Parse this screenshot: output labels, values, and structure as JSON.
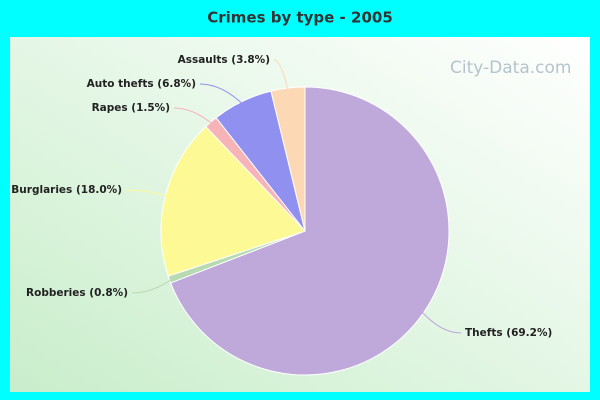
{
  "chart_data": {
    "type": "pie",
    "title": "Crimes by type - 2005",
    "categories": [
      "Thefts",
      "Robberies",
      "Burglaries",
      "Rapes",
      "Auto thefts",
      "Assaults"
    ],
    "values": [
      69.2,
      0.8,
      18.0,
      1.5,
      6.8,
      3.8
    ],
    "value_labels": [
      "(69.2%)",
      "(0.8%)",
      "(18.0%)",
      "(1.5%)",
      "(6.8%)",
      "(3.8%)"
    ],
    "colors": [
      "#bfa8da",
      "#b8dab0",
      "#fdf995",
      "#f7b4b8",
      "#9090f0",
      "#fdd8b4"
    ],
    "watermark": "City-Data.com"
  }
}
